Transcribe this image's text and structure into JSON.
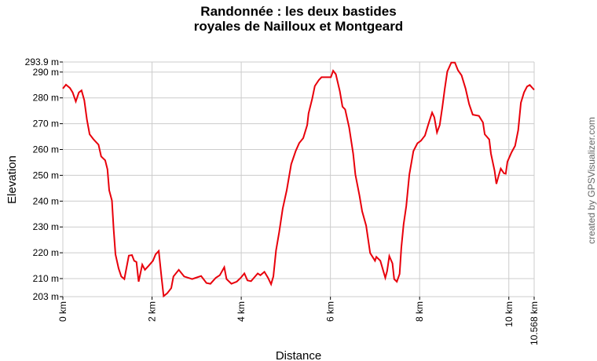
{
  "chart_data": {
    "type": "line",
    "title": [
      "Randonnée : les deux bastides",
      "royales de Nailloux et Montgeard"
    ],
    "xlabel": "Distance",
    "ylabel": "Elevation",
    "credit": "created by GPSVisualizer.com",
    "xlim": [
      0,
      10.568
    ],
    "ylim": [
      203,
      293.9
    ],
    "grid": true,
    "line_color": "#e8000b",
    "grid_color": "#cccccc",
    "x_ticks": [
      {
        "value": 0,
        "label": "0 km"
      },
      {
        "value": 2,
        "label": "2 km"
      },
      {
        "value": 4,
        "label": "4 km"
      },
      {
        "value": 6,
        "label": "6 km"
      },
      {
        "value": 8,
        "label": "8 km"
      },
      {
        "value": 10,
        "label": "10 km"
      },
      {
        "value": 10.568,
        "label": "10.568 km"
      }
    ],
    "y_ticks": [
      {
        "value": 203,
        "label": "203 m"
      },
      {
        "value": 210,
        "label": "210 m"
      },
      {
        "value": 220,
        "label": "220 m"
      },
      {
        "value": 230,
        "label": "230 m"
      },
      {
        "value": 240,
        "label": "240 m"
      },
      {
        "value": 250,
        "label": "250 m"
      },
      {
        "value": 260,
        "label": "260 m"
      },
      {
        "value": 270,
        "label": "270 m"
      },
      {
        "value": 280,
        "label": "280 m"
      },
      {
        "value": 290,
        "label": "290 m"
      },
      {
        "value": 293.9,
        "label": "293.9 m"
      }
    ],
    "series": [
      {
        "x": [
          0,
          0.07,
          0.16,
          0.22,
          0.29,
          0.36,
          0.42,
          0.48,
          0.54,
          0.6,
          0.69,
          0.8,
          0.86,
          0.95,
          1.0,
          1.04,
          1.1,
          1.14,
          1.18,
          1.25,
          1.31,
          1.38,
          1.48,
          1.55,
          1.6,
          1.65,
          1.7,
          1.78,
          1.84,
          1.92,
          2.02,
          2.08,
          2.15,
          2.21,
          2.26,
          2.34,
          2.43,
          2.48,
          2.6,
          2.72,
          2.9,
          2.98,
          3.1,
          3.22,
          3.31,
          3.43,
          3.52,
          3.62,
          3.67,
          3.78,
          3.9,
          3.99,
          4.07,
          4.14,
          4.22,
          4.37,
          4.43,
          4.52,
          4.6,
          4.67,
          4.72,
          4.78,
          4.85,
          4.93,
          5.02,
          5.12,
          5.22,
          5.3,
          5.39,
          5.48,
          5.51,
          5.59,
          5.65,
          5.74,
          5.8,
          6.01,
          6.06,
          6.12,
          6.21,
          6.27,
          6.33,
          6.42,
          6.51,
          6.56,
          6.65,
          6.71,
          6.8,
          6.89,
          7.0,
          7.03,
          7.12,
          7.23,
          7.27,
          7.32,
          7.39,
          7.43,
          7.49,
          7.55,
          7.59,
          7.64,
          7.7,
          7.77,
          7.86,
          7.95,
          8.03,
          8.12,
          8.19,
          8.28,
          8.33,
          8.39,
          8.45,
          8.51,
          8.56,
          8.62,
          8.71,
          8.79,
          8.86,
          8.94,
          9.03,
          9.11,
          9.19,
          9.33,
          9.42,
          9.46,
          9.56,
          9.6,
          9.68,
          9.72,
          9.77,
          9.82,
          9.89,
          9.93,
          9.97,
          10.06,
          10.14,
          10.21,
          10.27,
          10.34,
          10.41,
          10.47,
          10.568
        ],
        "y": [
          283.6,
          285.1,
          283.8,
          282.1,
          278.6,
          282.1,
          282.9,
          279.1,
          271.5,
          265.9,
          263.9,
          261.9,
          257.3,
          255.8,
          252.3,
          244.2,
          240.2,
          229,
          219.4,
          213.9,
          210.8,
          209.8,
          218.9,
          219.1,
          216.9,
          216.4,
          208.8,
          215.4,
          213.4,
          214.9,
          216.9,
          219.4,
          220.7,
          210.8,
          203.2,
          204.3,
          206.3,
          210.8,
          213.4,
          210.8,
          209.8,
          210.3,
          211,
          208.3,
          208,
          210.3,
          211.3,
          214.4,
          209.8,
          208,
          208.8,
          210.3,
          212,
          209.3,
          209,
          212,
          211.3,
          212.6,
          210.3,
          207.8,
          210.8,
          220.9,
          228,
          237.1,
          244.2,
          254.3,
          259.4,
          262.5,
          264.4,
          269.5,
          274,
          279.6,
          284.6,
          286.9,
          288,
          288,
          290.5,
          289.2,
          282.6,
          276.6,
          275.5,
          268.5,
          258.4,
          250.3,
          242.2,
          236.1,
          230.5,
          219.9,
          216.9,
          218.4,
          216.9,
          210.3,
          212.9,
          218.7,
          215.9,
          209.8,
          208.8,
          211.8,
          222,
          231,
          238.1,
          250.3,
          259.4,
          262.4,
          263.4,
          265.4,
          269.5,
          274.3,
          272.5,
          266.6,
          269.5,
          276.6,
          283.1,
          290.2,
          293.7,
          293.7,
          290.7,
          288.7,
          283.6,
          277.6,
          273.5,
          273,
          270.5,
          265.9,
          263.9,
          258.4,
          251.8,
          246.7,
          249.8,
          252.6,
          250.8,
          250.6,
          255.3,
          258.9,
          261.4,
          267.5,
          278.1,
          282.1,
          284.4,
          285,
          283.1
        ]
      }
    ]
  }
}
